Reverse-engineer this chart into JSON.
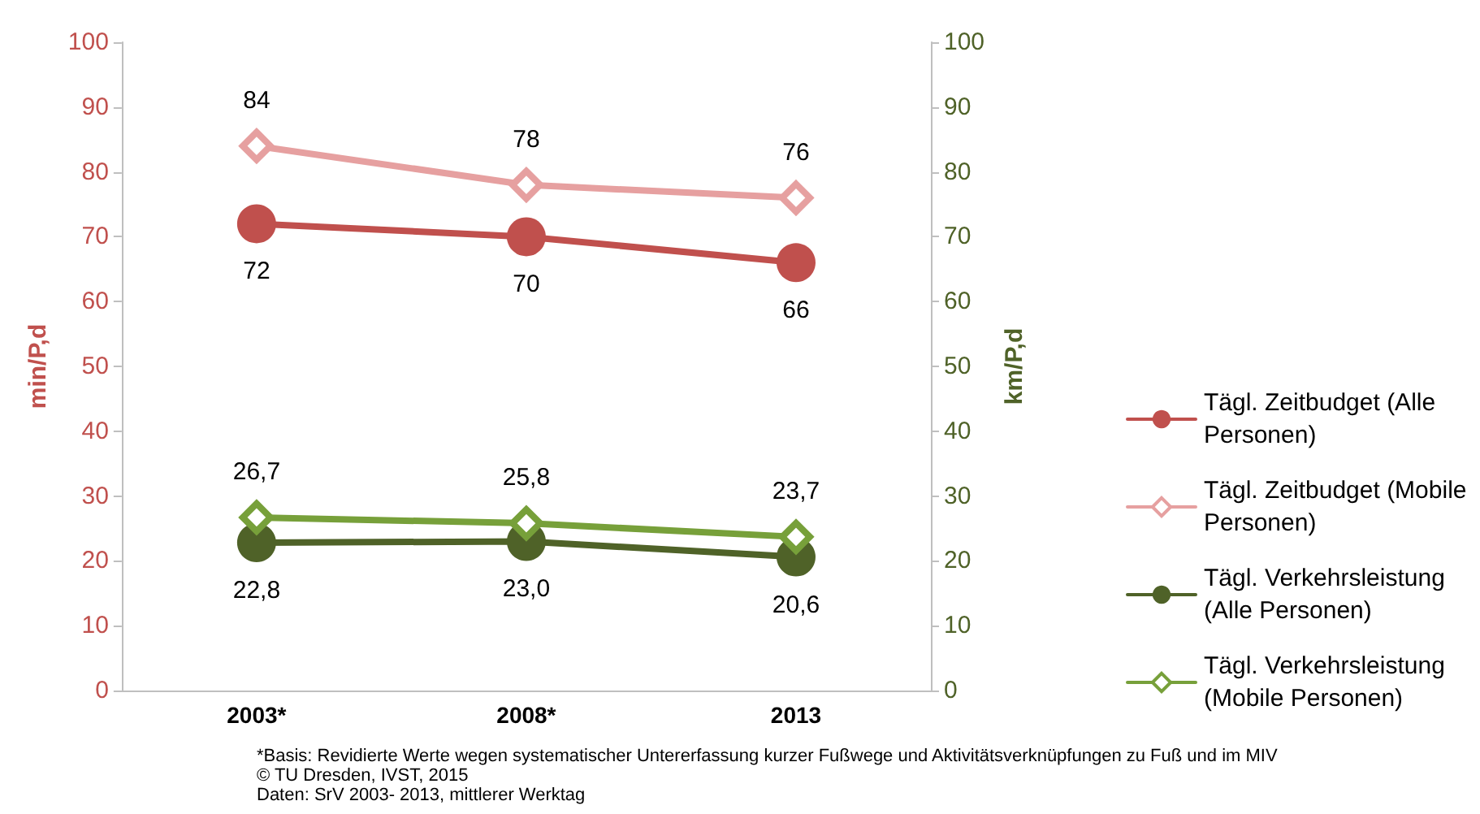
{
  "chart_data": {
    "type": "line",
    "ylabel": "min/P,d",
    "y2label": "km/P,d",
    "categories": [
      "2003*",
      "2008*",
      "2013"
    ],
    "ylim": [
      0,
      100
    ],
    "yticks": [
      0,
      10,
      20,
      30,
      40,
      50,
      60,
      70,
      80,
      90,
      100
    ],
    "y2lim": [
      0,
      100
    ],
    "y2ticks": [
      0,
      10,
      20,
      30,
      40,
      50,
      60,
      70,
      80,
      90,
      100
    ],
    "grid": false,
    "legend": "right",
    "series": [
      {
        "name": "Tägl. Zeitbudget (Alle Personen)",
        "color": "#c0504d",
        "marker": "circle",
        "values": [
          72,
          70,
          66
        ],
        "value_labels": [
          "72",
          "70",
          "66"
        ]
      },
      {
        "name": "Tägl. Zeitbudget (Mobile Personen)",
        "color": "#e6a0a0",
        "marker": "diamond",
        "values": [
          84,
          78,
          76
        ],
        "value_labels": [
          "84",
          "78",
          "76"
        ]
      },
      {
        "name": "Tägl. Verkehrsleistung (Alle Personen)",
        "color": "#4f6228",
        "marker": "circle",
        "axis": "y2",
        "values": [
          22.8,
          23.0,
          20.6
        ],
        "value_labels": [
          "22,8",
          "23,0",
          "20,6"
        ]
      },
      {
        "name": "Tägl. Verkehrsleistung (Mobile Personen)",
        "color": "#77a03a",
        "marker": "diamond",
        "axis": "y2",
        "values": [
          26.7,
          25.8,
          23.7
        ],
        "value_labels": [
          "26,7",
          "25,8",
          "23,7"
        ]
      }
    ],
    "annotations": [
      "*Basis: Revidierte Werte wegen systematischer Untererfassung kurzer Fußwege und Aktivitätsverknüpfungen zu Fuß und im MIV",
      "© TU Dresden, IVST, 2015",
      "Daten: SrV 2003- 2013, mittlerer Werktag"
    ]
  }
}
